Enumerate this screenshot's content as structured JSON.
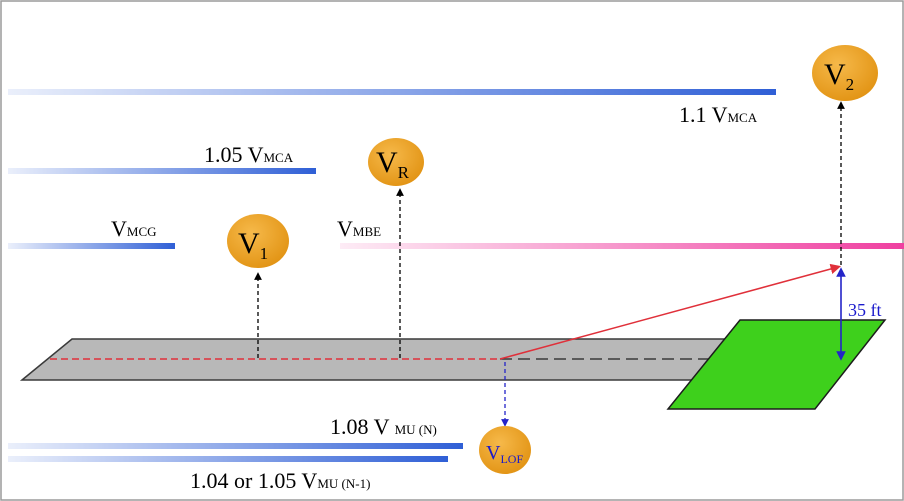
{
  "colors": {
    "speed_line_blue": "#2f5fd6",
    "speed_line_pink": "#ef3fa0",
    "badge_orange": "#e89a1c",
    "runway_gray": "#b8b8b8",
    "obstacle_green": "#3ed01c",
    "flight_path_red": "#e0303a",
    "height_arrow_blue": "#2424c8"
  },
  "labels": {
    "v_mcg": {
      "main": "V",
      "sub": "MCG"
    },
    "v_mca_105": {
      "main": "1.05 V",
      "sub": "MCA"
    },
    "v_mca_11": {
      "main": "1.1 V",
      "sub": "MCA"
    },
    "v_mbe": {
      "main": "V",
      "sub": "MBE"
    },
    "v_mu_108": {
      "main": "1.08 V ",
      "sub": "MU (N)"
    },
    "v_mu_104": {
      "main": "1.04  or 1.05 V",
      "sub": "MU (N-1)"
    },
    "height": "35 ft"
  },
  "badges": {
    "v1": {
      "main": "V",
      "sub": "1"
    },
    "vr": {
      "main": "V",
      "sub": "R"
    },
    "v2": {
      "main": "V",
      "sub": "2"
    },
    "vlof": {
      "main": "V",
      "sub": "LOF"
    }
  }
}
